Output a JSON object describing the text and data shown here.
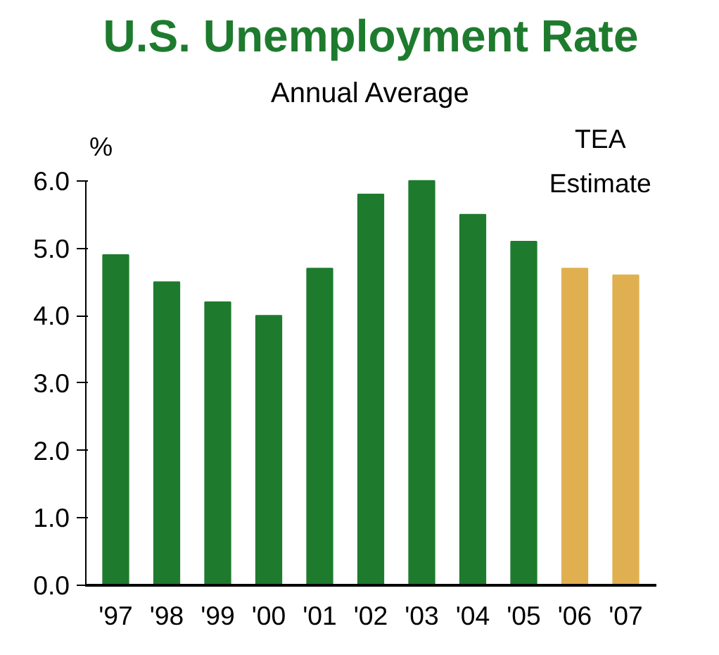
{
  "chart_data": {
    "type": "bar",
    "title": "U.S. Unemployment Rate",
    "subtitle": "Annual Average",
    "ylabel": "%",
    "categories": [
      "'97",
      "'98",
      "'99",
      "'00",
      "'01",
      "'02",
      "'03",
      "'04",
      "'05",
      "'06",
      "'07"
    ],
    "values": [
      4.9,
      4.5,
      4.2,
      4.0,
      4.7,
      5.8,
      6.0,
      5.5,
      5.1,
      4.7,
      4.6
    ],
    "colors": [
      "#1e7b2e",
      "#1e7b2e",
      "#1e7b2e",
      "#1e7b2e",
      "#1e7b2e",
      "#1e7b2e",
      "#1e7b2e",
      "#1e7b2e",
      "#1e7b2e",
      "#e0b050",
      "#e0b050"
    ],
    "ylim": [
      0,
      6.0
    ],
    "yticks": [
      {
        "value": 0,
        "label": "0.0"
      },
      {
        "value": 1,
        "label": "1.0"
      },
      {
        "value": 2,
        "label": "2.0"
      },
      {
        "value": 3,
        "label": "3.0"
      },
      {
        "value": 4,
        "label": "4.0"
      },
      {
        "value": 5,
        "label": "5.0"
      },
      {
        "value": 6,
        "label": "6.0"
      }
    ],
    "annotations": [
      "TEA Estimate"
    ],
    "grid": false
  }
}
